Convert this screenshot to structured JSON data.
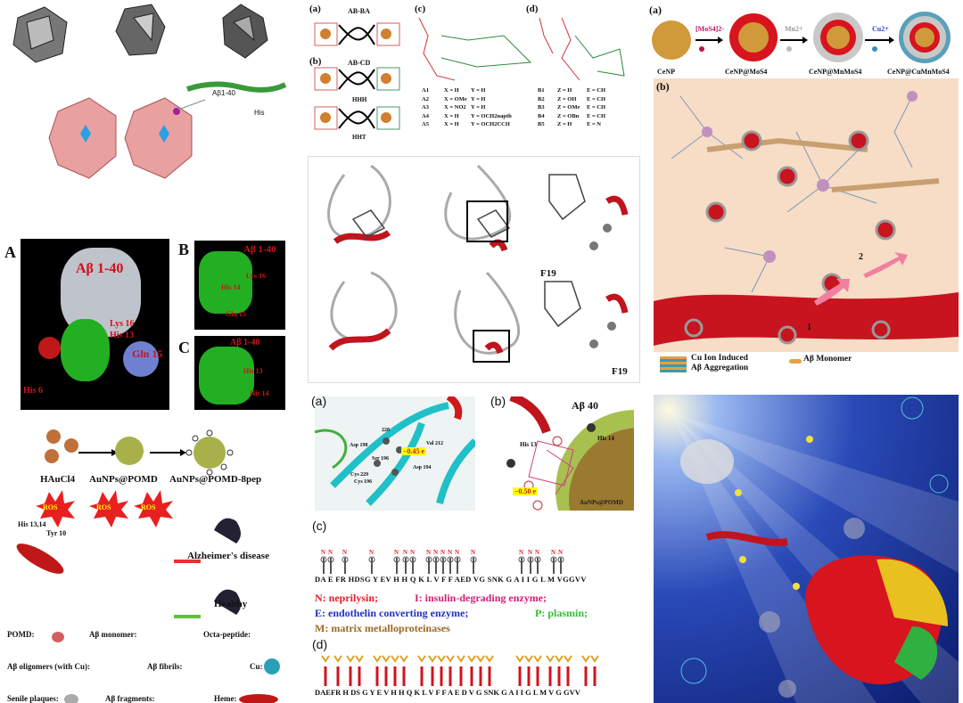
{
  "polyoxometalate_panel": {
    "peptide_label": "Aβ1-40",
    "residue_label": "His"
  },
  "docking_panel": {
    "A": {
      "label": "A",
      "title": "Aβ 1-40",
      "residues": [
        "Lys 16",
        "His 13",
        "Gln 15",
        "His 6"
      ]
    },
    "B": {
      "label": "B",
      "title": "Aβ 1-40",
      "residues": [
        "Lys 16",
        "His 14",
        "Gln 15"
      ]
    },
    "C": {
      "label": "C",
      "title": "Aβ 1-40",
      "residues": [
        "His 13",
        "His 14"
      ]
    }
  },
  "aunp_scheme": {
    "steps": [
      "HAuCl4",
      "AuNPs@POMD",
      "AuNPs@POMD-8pep"
    ],
    "ros": "ROS",
    "residues": [
      "His 13,14",
      "Tyr 10"
    ],
    "outcomes": [
      "Alzheimer's disease",
      "Healthy"
    ],
    "legend": [
      "POMD:",
      "Aβ monomer:",
      "Octa-peptide:",
      "Aβ oligomers (with Cu):",
      "Aβ fibrils:",
      "Cu:",
      "Senile plaques:",
      "Aβ fragments:",
      "Heme:"
    ]
  },
  "helicate_panel": {
    "labels": [
      "(a)",
      "(b)",
      "(c)",
      "(d)"
    ],
    "a_title": "AB-BA",
    "b_title": "AB-CD",
    "b_sub": [
      "HHH",
      "HHT"
    ],
    "c_table": [
      [
        "A1",
        "X = H",
        "Y = H"
      ],
      [
        "A2",
        "X = OMe",
        "Y = H"
      ],
      [
        "A3",
        "X = NO2",
        "Y = H"
      ],
      [
        "A4",
        "X = H",
        "Y = OCH2napth"
      ],
      [
        "A5",
        "X = H",
        "Y = OCH2CCH"
      ]
    ],
    "d_table": [
      [
        "B1",
        "Z = H",
        "E = CH"
      ],
      [
        "B2",
        "Z = OH",
        "E = CH"
      ],
      [
        "B3",
        "Z = OMe",
        "E = CH"
      ],
      [
        "B4",
        "Z = OBn",
        "E = CH"
      ],
      [
        "B5",
        "Z = H",
        "E = N"
      ]
    ]
  },
  "ribbon_panel": {
    "residue": "F19"
  },
  "enzyme_panel": {
    "a_label": "(a)",
    "b_label": "(b)",
    "a_residues": [
      "228",
      "Asp 198",
      "Val 212",
      "Ser 196",
      "Asp 194",
      "Cys 229",
      "Cys 196"
    ],
    "a_charge": "−0.45 e",
    "b_title": "Aβ 40",
    "b_residues": [
      "His 13",
      "His 14"
    ],
    "b_charge": "−0.50 e",
    "b_particle": "AuNPs@POMD"
  },
  "sequence_panel": {
    "c_label": "(c)",
    "d_label": "(d)",
    "sequence": "DA E FR  HDSG Y  EV H H Q  K L V F F  AED VG  SNK G A  I I G L M  VGGVV",
    "sequence_d": "DAEFR  H DS G Y  E V H H Q  K L V F F  A E D V G  SNK G A  I I G L M  V G GVV",
    "legend": [
      {
        "text": "N: neprilysin;",
        "color": "#e0202a"
      },
      {
        "text": "I: insulin-degrading enzyme;",
        "color": "#d0207a"
      },
      {
        "text": "E: endothelin converting enzyme;",
        "color": "#2030c0"
      },
      {
        "text": "P: plasmin;",
        "color": "#30c030"
      },
      {
        "text": "M: matrix metalloproteinases",
        "color": "#9a6a20"
      }
    ]
  },
  "nanoparticle_panel": {
    "a_label": "(a)",
    "b_label": "(b)",
    "reagents": [
      "[MoS4]2-",
      "Mn2+",
      "Cu2+"
    ],
    "products": [
      "CeNP",
      "CeNP@MoS4",
      "CeNP@MnMoS4",
      "CeNP@CuMnMoS4"
    ],
    "steps": [
      "1",
      "2"
    ],
    "legend": [
      "Cu Ion Induced",
      "Aβ Aggregation",
      "Aβ Monomer"
    ]
  },
  "colors": {
    "peach": "#f7dcc6",
    "vessel": "#c8141e",
    "dark_blue": "#0a1a6a",
    "green_surface": "#20b020",
    "pink_poly": "#e8a0a0"
  }
}
